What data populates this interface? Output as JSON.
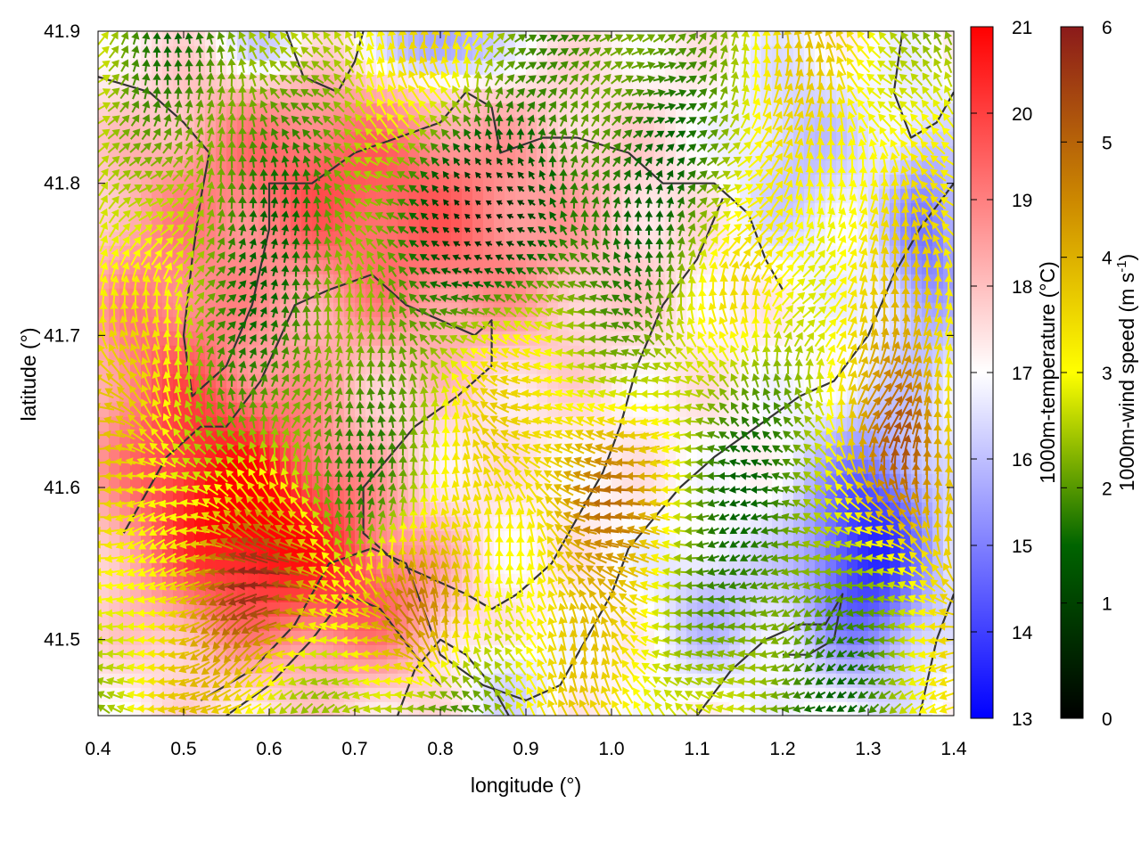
{
  "chart_data": {
    "type": "heatmap",
    "title": "",
    "xlabel": "longitude (°)",
    "ylabel": "latitude (°)",
    "xlim": [
      0.4,
      1.4
    ],
    "ylim": [
      41.45,
      41.9
    ],
    "x_ticks": [
      0.4,
      0.5,
      0.6,
      0.7,
      0.8,
      0.9,
      1.0,
      1.1,
      1.2,
      1.3,
      1.4
    ],
    "y_ticks": [
      41.5,
      41.6,
      41.7,
      41.8,
      41.9
    ],
    "x_tick_labels": [
      "0.4",
      "0.5",
      "0.6",
      "0.7",
      "0.8",
      "0.9",
      "1.0",
      "1.1",
      "1.2",
      "1.3",
      "1.4"
    ],
    "y_tick_labels": [
      "41.5",
      "41.6",
      "41.7",
      "41.8",
      "41.9"
    ],
    "temperature_colorbar": {
      "label": "1000m-temperature (°C)",
      "range": [
        13,
        21
      ],
      "ticks": [
        13,
        14,
        15,
        16,
        17,
        18,
        19,
        20,
        21
      ],
      "tick_labels": [
        "13",
        "14",
        "15",
        "16",
        "17",
        "18",
        "19",
        "20",
        "21"
      ],
      "colors": [
        "#0000ff",
        "#ffffff",
        "#ff0000"
      ]
    },
    "wind_colorbar": {
      "label_prefix": "1000m-wind speed (m s",
      "label_exponent": "-1",
      "label_suffix": ")",
      "range": [
        0,
        6
      ],
      "ticks": [
        0,
        1,
        2,
        3,
        4,
        5,
        6
      ],
      "tick_labels": [
        "0",
        "1",
        "2",
        "3",
        "4",
        "5",
        "6"
      ],
      "colors": [
        "#000000",
        "#006400",
        "#ffff00",
        "#cc8800",
        "#8b1a1a"
      ]
    },
    "temperature_field": {
      "background_c": 17.2,
      "features": [
        {
          "lon": 0.78,
          "lat": 41.77,
          "sx": 0.22,
          "sy": 0.09,
          "amp": 2.1
        },
        {
          "lon": 0.58,
          "lat": 41.58,
          "sx": 0.12,
          "sy": 0.08,
          "amp": 3.6
        },
        {
          "lon": 0.47,
          "lat": 41.68,
          "sx": 0.1,
          "sy": 0.12,
          "amp": 1.8
        },
        {
          "lon": 0.72,
          "lat": 41.53,
          "sx": 0.1,
          "sy": 0.06,
          "amp": 1.8
        },
        {
          "lon": 0.62,
          "lat": 41.82,
          "sx": 0.15,
          "sy": 0.06,
          "amp": 1.2
        },
        {
          "lon": 1.3,
          "lat": 41.56,
          "sx": 0.08,
          "sy": 0.08,
          "amp": -3.6
        },
        {
          "lon": 1.37,
          "lat": 41.76,
          "sx": 0.05,
          "sy": 0.08,
          "amp": -2.2
        },
        {
          "lon": 1.22,
          "lat": 41.82,
          "sx": 0.08,
          "sy": 0.07,
          "amp": -1.2
        },
        {
          "lon": 0.8,
          "lat": 41.89,
          "sx": 0.07,
          "sy": 0.025,
          "amp": -2.4
        },
        {
          "lon": 0.6,
          "lat": 41.89,
          "sx": 0.05,
          "sy": 0.02,
          "amp": -1.4
        },
        {
          "lon": 1.12,
          "lat": 41.52,
          "sx": 0.07,
          "sy": 0.05,
          "amp": -1.2
        },
        {
          "lon": 0.88,
          "lat": 41.47,
          "sx": 0.05,
          "sy": 0.03,
          "amp": -0.9
        }
      ]
    },
    "wind_field": {
      "grid_step_deg": [
        0.0125,
        0.009
      ],
      "weak_zone": {
        "lon": 0.85,
        "lat": 41.78,
        "sx": 0.12,
        "sy": 0.07
      },
      "strong_zones": [
        {
          "lon": 0.6,
          "lat": 41.54,
          "sx": 0.07,
          "sy": 0.05,
          "speed_ms": 5.6
        },
        {
          "lon": 0.76,
          "lat": 41.52,
          "sx": 0.08,
          "sy": 0.05,
          "speed_ms": 5.0
        },
        {
          "lon": 1.34,
          "lat": 41.62,
          "sx": 0.05,
          "sy": 0.06,
          "speed_ms": 4.8
        },
        {
          "lon": 1.0,
          "lat": 41.6,
          "sx": 0.07,
          "sy": 0.05,
          "speed_ms": 4.3
        },
        {
          "lon": 1.15,
          "lat": 41.72,
          "sx": 0.08,
          "sy": 0.06,
          "speed_ms": 3.8
        }
      ]
    },
    "contour_lines": [
      [
        [
          0.4,
          41.87
        ],
        [
          0.46,
          41.86
        ],
        [
          0.5,
          41.84
        ],
        [
          0.53,
          41.82
        ],
        [
          0.52,
          41.79
        ],
        [
          0.51,
          41.75
        ],
        [
          0.5,
          41.7
        ],
        [
          0.51,
          41.66
        ],
        [
          0.55,
          41.68
        ],
        [
          0.58,
          41.72
        ],
        [
          0.6,
          41.77
        ],
        [
          0.6,
          41.8
        ],
        [
          0.65,
          41.8
        ],
        [
          0.7,
          41.82
        ],
        [
          0.75,
          41.83
        ],
        [
          0.8,
          41.84
        ],
        [
          0.83,
          41.86
        ],
        [
          0.86,
          41.85
        ],
        [
          0.87,
          41.82
        ],
        [
          0.92,
          41.83
        ],
        [
          0.96,
          41.83
        ],
        [
          1.02,
          41.82
        ],
        [
          1.06,
          41.8
        ],
        [
          1.12,
          41.8
        ],
        [
          1.16,
          41.78
        ],
        [
          1.18,
          41.75
        ],
        [
          1.2,
          41.73
        ]
      ],
      [
        [
          0.43,
          41.57
        ],
        [
          0.48,
          41.62
        ],
        [
          0.52,
          41.64
        ],
        [
          0.55,
          41.64
        ],
        [
          0.59,
          41.67
        ],
        [
          0.63,
          41.72
        ],
        [
          0.67,
          41.73
        ],
        [
          0.72,
          41.74
        ],
        [
          0.76,
          41.72
        ],
        [
          0.8,
          41.71
        ],
        [
          0.84,
          41.7
        ],
        [
          0.86,
          41.71
        ],
        [
          0.86,
          41.68
        ],
        [
          0.82,
          41.66
        ],
        [
          0.77,
          41.64
        ],
        [
          0.74,
          41.62
        ],
        [
          0.71,
          41.6
        ],
        [
          0.71,
          41.57
        ],
        [
          0.75,
          41.55
        ],
        [
          0.79,
          41.54
        ],
        [
          0.83,
          41.53
        ],
        [
          0.86,
          41.52
        ],
        [
          0.89,
          41.53
        ],
        [
          0.93,
          41.55
        ],
        [
          0.96,
          41.58
        ],
        [
          0.99,
          41.61
        ],
        [
          1.01,
          41.64
        ],
        [
          1.03,
          41.68
        ],
        [
          1.06,
          41.72
        ],
        [
          1.1,
          41.75
        ],
        [
          1.13,
          41.79
        ]
      ],
      [
        [
          0.52,
          41.46
        ],
        [
          0.58,
          41.48
        ],
        [
          0.63,
          41.51
        ],
        [
          0.67,
          41.55
        ],
        [
          0.72,
          41.56
        ],
        [
          0.76,
          41.55
        ],
        [
          0.78,
          41.52
        ],
        [
          0.8,
          41.49
        ],
        [
          0.85,
          41.47
        ],
        [
          0.9,
          41.46
        ],
        [
          0.94,
          41.47
        ],
        [
          0.97,
          41.5
        ],
        [
          1.0,
          41.53
        ],
        [
          1.02,
          41.56
        ],
        [
          1.05,
          41.58
        ],
        [
          1.08,
          41.6
        ],
        [
          1.12,
          41.62
        ],
        [
          1.17,
          41.64
        ],
        [
          1.22,
          41.66
        ],
        [
          1.26,
          41.67
        ],
        [
          1.3,
          41.7
        ],
        [
          1.33,
          41.74
        ],
        [
          1.36,
          41.77
        ],
        [
          1.4,
          41.8
        ]
      ],
      [
        [
          0.55,
          41.45
        ],
        [
          0.6,
          41.47
        ],
        [
          0.65,
          41.5
        ],
        [
          0.69,
          41.53
        ],
        [
          0.73,
          41.52
        ],
        [
          0.77,
          41.49
        ],
        [
          0.8,
          41.47
        ]
      ],
      [
        [
          0.75,
          41.45
        ],
        [
          0.77,
          41.48
        ],
        [
          0.8,
          41.5
        ],
        [
          0.83,
          41.49
        ],
        [
          0.86,
          41.47
        ],
        [
          0.88,
          41.45
        ]
      ],
      [
        [
          1.1,
          41.45
        ],
        [
          1.14,
          41.48
        ],
        [
          1.18,
          41.5
        ],
        [
          1.22,
          41.51
        ],
        [
          1.25,
          41.51
        ],
        [
          1.27,
          41.53
        ],
        [
          1.26,
          41.5
        ],
        [
          1.23,
          41.49
        ],
        [
          1.2,
          41.49
        ]
      ],
      [
        [
          1.34,
          41.9
        ],
        [
          1.33,
          41.86
        ],
        [
          1.35,
          41.83
        ],
        [
          1.38,
          41.84
        ],
        [
          1.4,
          41.86
        ]
      ],
      [
        [
          0.62,
          41.9
        ],
        [
          0.64,
          41.87
        ],
        [
          0.68,
          41.86
        ],
        [
          0.7,
          41.88
        ],
        [
          0.71,
          41.9
        ]
      ],
      [
        [
          1.36,
          41.45
        ],
        [
          1.38,
          41.5
        ],
        [
          1.4,
          41.53
        ]
      ]
    ]
  }
}
